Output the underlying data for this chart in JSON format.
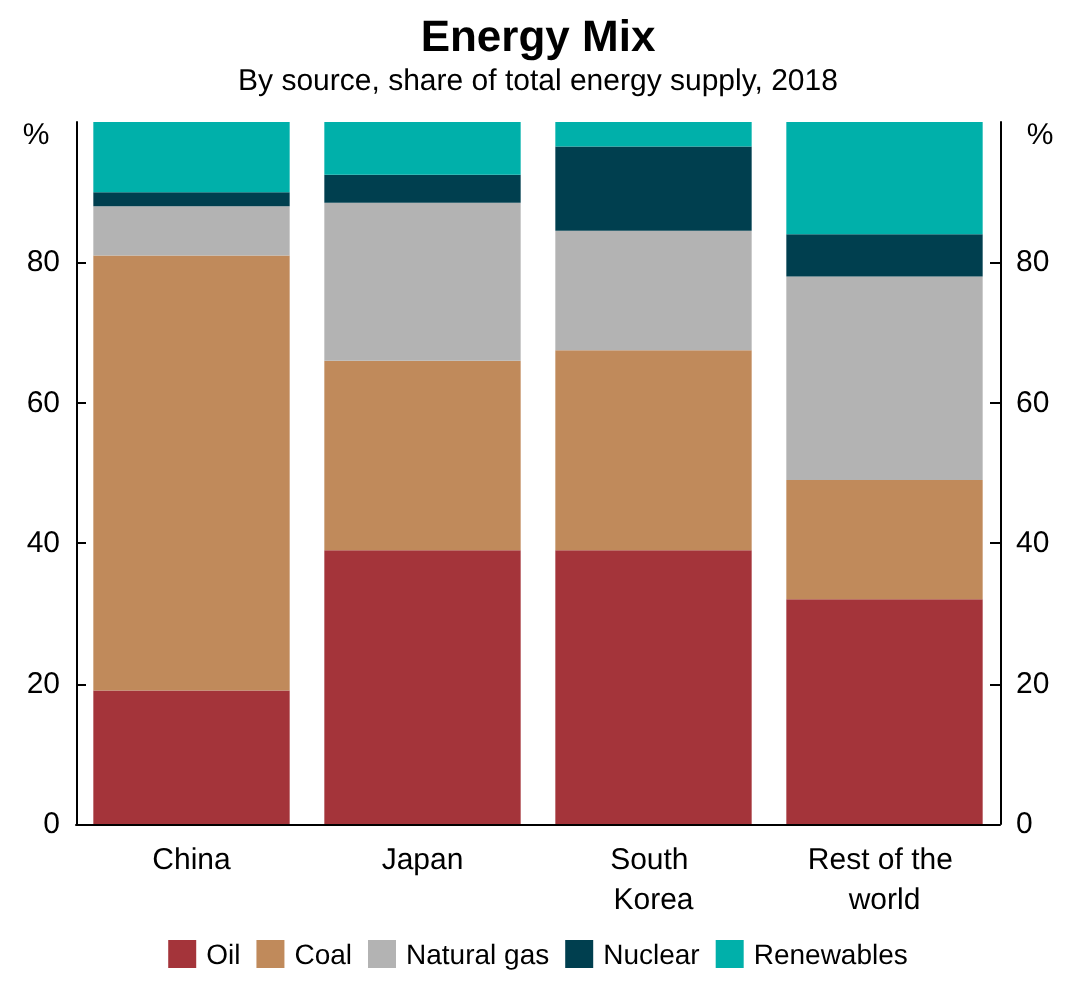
{
  "chart_data": {
    "type": "bar",
    "title": "Energy Mix",
    "subtitle": "By source, share of total energy supply, 2018",
    "ylabel": "%",
    "y2label": "%",
    "categories": [
      "China",
      "Japan",
      "South Korea",
      "Rest of the world"
    ],
    "series": [
      {
        "name": "Oil",
        "color": "#a4343a",
        "values": [
          19,
          39,
          39,
          32
        ]
      },
      {
        "name": "Coal",
        "color": "#c08a5b",
        "values": [
          62,
          27,
          28.5,
          17
        ]
      },
      {
        "name": "Natural gas",
        "color": "#b3b3b3",
        "values": [
          7,
          22.5,
          17,
          29
        ]
      },
      {
        "name": "Nuclear",
        "color": "#003f4f",
        "values": [
          2,
          4,
          12,
          6
        ]
      },
      {
        "name": "Renewables",
        "color": "#00b0aa",
        "values": [
          10,
          7.5,
          3.5,
          16
        ]
      }
    ],
    "stacked": true,
    "ylim": [
      0,
      100
    ],
    "yticks": [
      0,
      20,
      40,
      60,
      80
    ],
    "y2lim": [
      0,
      100
    ],
    "y2ticks": [
      0,
      20,
      40,
      60,
      80
    ],
    "grid": false,
    "legend": "bottom"
  }
}
